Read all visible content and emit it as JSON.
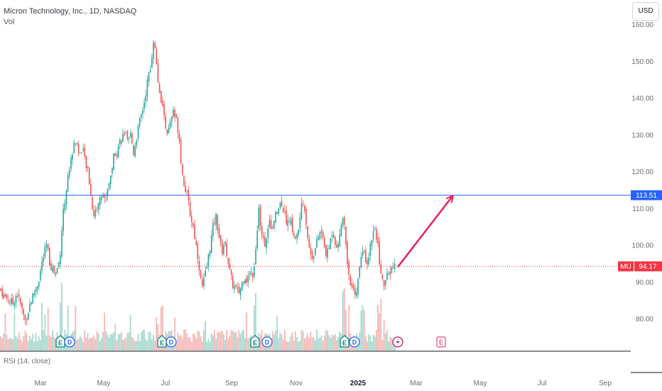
{
  "header": {
    "symbol_line": "Micron Technology, Inc., 1D, NASDAQ",
    "volume_label": "Vol",
    "currency_button": "USD"
  },
  "indicator": {
    "rsi_label": "RSI (14, close)"
  },
  "colors": {
    "up": "#26a69a",
    "down": "#ef5350",
    "up_volume": "#a8d9ce",
    "down_volume": "#f5b8b6",
    "level_line": "#2962ff",
    "current_price": "#f23645",
    "arrow": "#e91e63"
  },
  "chart_data": {
    "type": "candlestick",
    "y_range": [
      72,
      163
    ],
    "y_ticks": [
      "160.00",
      "150.00",
      "140.00",
      "130.00",
      "120.00",
      "110.00",
      "100.00",
      "90.00",
      "80.00"
    ],
    "y_tick_values": [
      160,
      150,
      140,
      130,
      120,
      110,
      100,
      90,
      80
    ],
    "x_tick_labels": [
      "Mar",
      "May",
      "Jul",
      "Sep",
      "Nov",
      "2025",
      "Mar",
      "May",
      "Jul",
      "Sep"
    ],
    "bold_x_tick": "2025",
    "horizontal_level": {
      "value": 113.51,
      "label": "113.51"
    },
    "current_price": {
      "symbol": "MU",
      "value": 94.17,
      "label": "94.17"
    },
    "close_path": [
      [
        0,
        88
      ],
      [
        6,
        86
      ],
      [
        12,
        85
      ],
      [
        18,
        84
      ],
      [
        24,
        87
      ],
      [
        30,
        83
      ],
      [
        36,
        79
      ],
      [
        42,
        84
      ],
      [
        48,
        87
      ],
      [
        54,
        90
      ],
      [
        60,
        96
      ],
      [
        66,
        100
      ],
      [
        70,
        95
      ],
      [
        78,
        92
      ],
      [
        84,
        96
      ],
      [
        88,
        107
      ],
      [
        92,
        113
      ],
      [
        96,
        119
      ],
      [
        100,
        123
      ],
      [
        104,
        128
      ],
      [
        108,
        128
      ],
      [
        112,
        124
      ],
      [
        116,
        127
      ],
      [
        120,
        122
      ],
      [
        124,
        120
      ],
      [
        128,
        113
      ],
      [
        132,
        108
      ],
      [
        136,
        110
      ],
      [
        140,
        112
      ],
      [
        144,
        114
      ],
      [
        148,
        112
      ],
      [
        152,
        116
      ],
      [
        156,
        119
      ],
      [
        160,
        124
      ],
      [
        164,
        125
      ],
      [
        168,
        128
      ],
      [
        172,
        129
      ],
      [
        176,
        131
      ],
      [
        180,
        127
      ],
      [
        184,
        130
      ],
      [
        188,
        125
      ],
      [
        192,
        129
      ],
      [
        196,
        133
      ],
      [
        200,
        136
      ],
      [
        204,
        140
      ],
      [
        208,
        145
      ],
      [
        212,
        148
      ],
      [
        216,
        156
      ],
      [
        220,
        150
      ],
      [
        224,
        141
      ],
      [
        228,
        138
      ],
      [
        232,
        134
      ],
      [
        236,
        130
      ],
      [
        240,
        133
      ],
      [
        244,
        136
      ],
      [
        248,
        134
      ],
      [
        252,
        130
      ],
      [
        256,
        120
      ],
      [
        260,
        116
      ],
      [
        264,
        113
      ],
      [
        268,
        108
      ],
      [
        272,
        105
      ],
      [
        276,
        100
      ],
      [
        280,
        95
      ],
      [
        284,
        88
      ],
      [
        288,
        91
      ],
      [
        292,
        95
      ],
      [
        296,
        100
      ],
      [
        300,
        105
      ],
      [
        304,
        108
      ],
      [
        308,
        103
      ],
      [
        312,
        98
      ],
      [
        316,
        101
      ],
      [
        320,
        97
      ],
      [
        324,
        92
      ],
      [
        328,
        89
      ],
      [
        332,
        88
      ],
      [
        336,
        87
      ],
      [
        340,
        89
      ],
      [
        344,
        92
      ],
      [
        348,
        90
      ],
      [
        352,
        93
      ],
      [
        356,
        92
      ],
      [
        360,
        98
      ],
      [
        364,
        110
      ],
      [
        368,
        104
      ],
      [
        372,
        100
      ],
      [
        376,
        103
      ],
      [
        380,
        106
      ],
      [
        384,
        104
      ],
      [
        388,
        108
      ],
      [
        392,
        110
      ],
      [
        396,
        112
      ],
      [
        400,
        109
      ],
      [
        404,
        106
      ],
      [
        408,
        107
      ],
      [
        412,
        104
      ],
      [
        416,
        101
      ],
      [
        420,
        104
      ],
      [
        424,
        110
      ],
      [
        428,
        112
      ],
      [
        432,
        104
      ],
      [
        436,
        98
      ],
      [
        440,
        97
      ],
      [
        444,
        99
      ],
      [
        448,
        102
      ],
      [
        452,
        104
      ],
      [
        456,
        100
      ],
      [
        460,
        97
      ],
      [
        464,
        100
      ],
      [
        468,
        104
      ],
      [
        472,
        101
      ],
      [
        476,
        99
      ],
      [
        480,
        106
      ],
      [
        484,
        108
      ],
      [
        488,
        98
      ],
      [
        492,
        90
      ],
      [
        496,
        88
      ],
      [
        500,
        86
      ],
      [
        504,
        90
      ],
      [
        508,
        96
      ],
      [
        512,
        100
      ],
      [
        516,
        95
      ],
      [
        520,
        98
      ],
      [
        524,
        103
      ],
      [
        528,
        105
      ],
      [
        532,
        100
      ],
      [
        536,
        92
      ],
      [
        540,
        89
      ],
      [
        544,
        91
      ],
      [
        548,
        92
      ],
      [
        552,
        94
      ],
      [
        556,
        94.17
      ]
    ],
    "earnings_markers": [
      85,
      228,
      359,
      485,
      621
    ],
    "dividend_markers": [
      98,
      241,
      376,
      499
    ],
    "split_marker": 560,
    "projection_arrow": {
      "from": [
        560,
        94
      ],
      "to": [
        636,
        113
      ]
    }
  }
}
